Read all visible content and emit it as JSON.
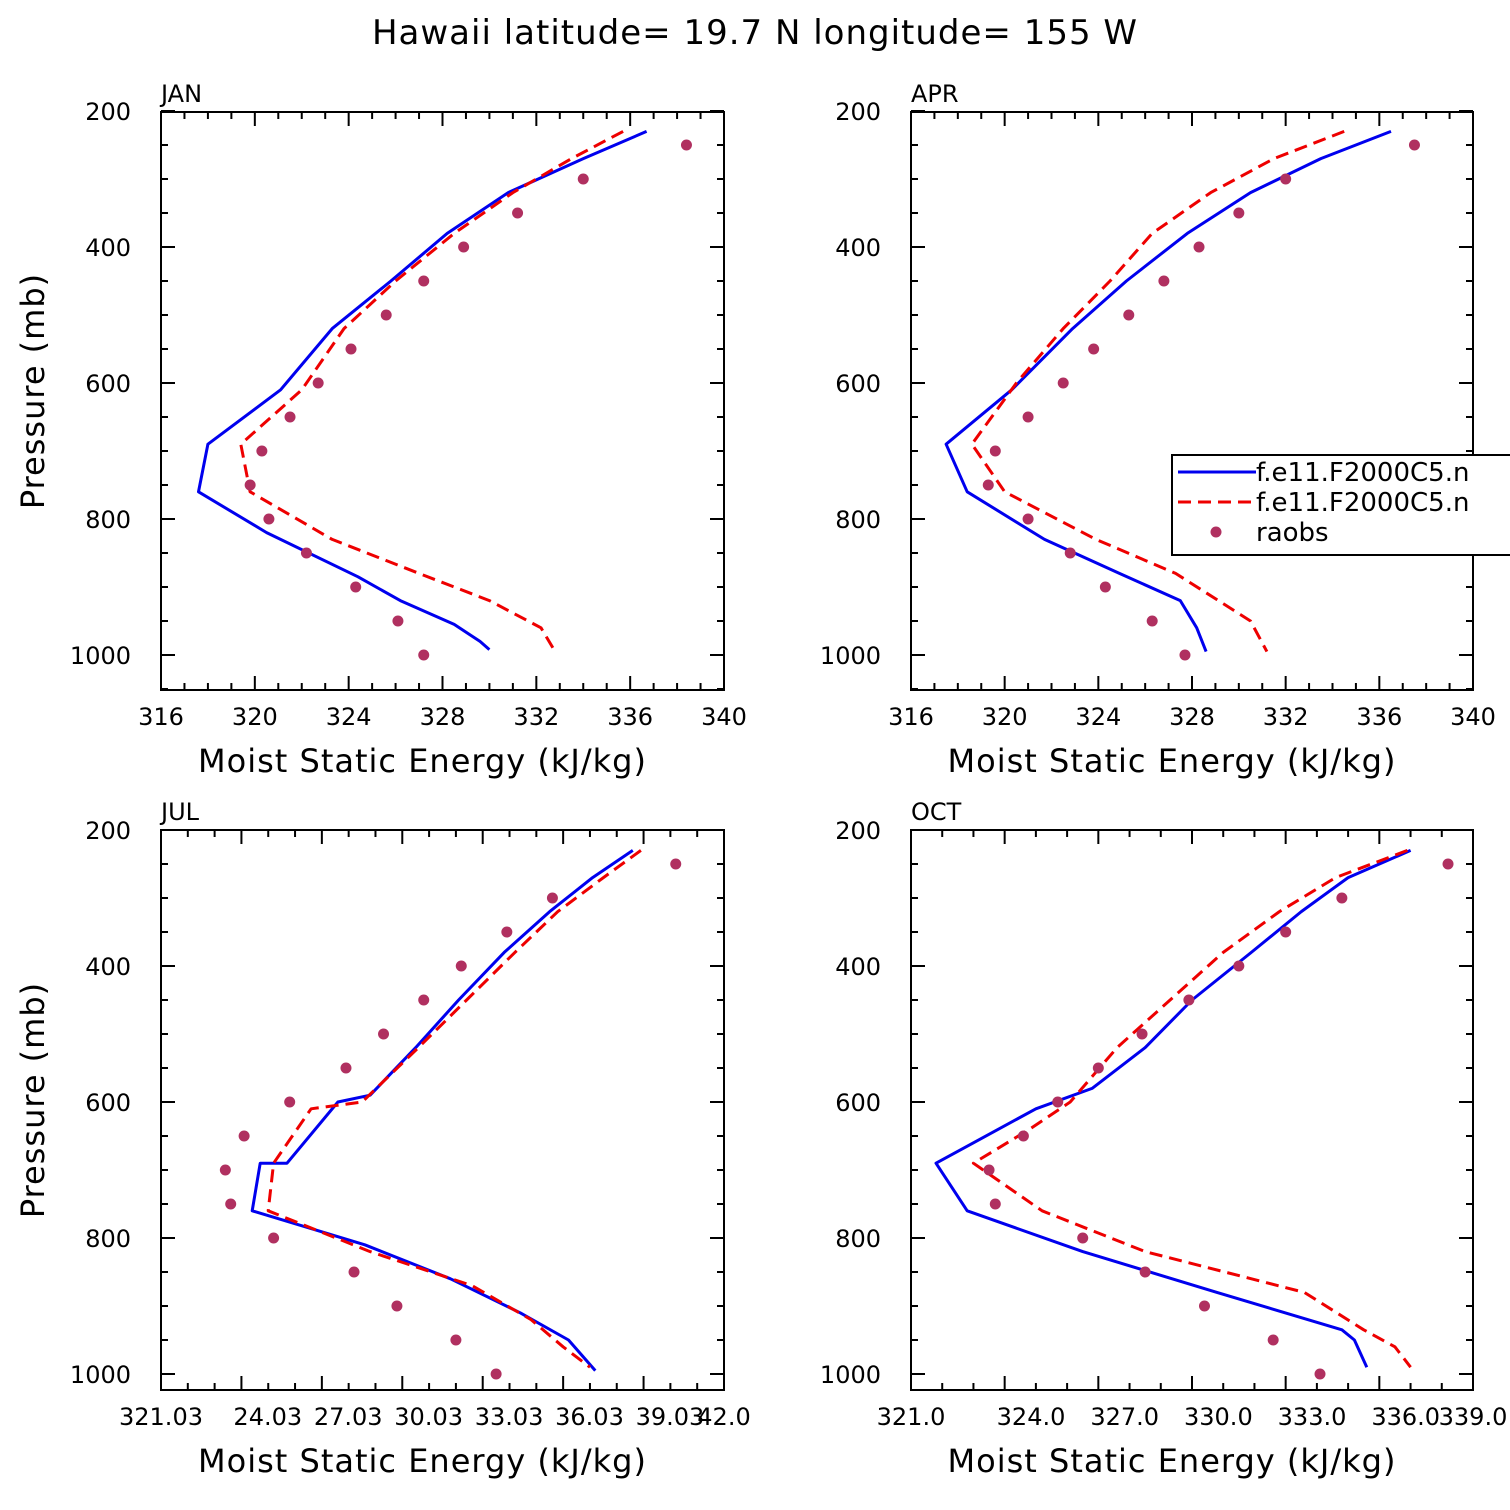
{
  "title": "Hawaii  latitude= 19.7 N longitude= 155 W",
  "colors": {
    "model1": "#0000ee",
    "model2": "#ee0000",
    "raobs": "#b03060",
    "axis": "#000000"
  },
  "legend": {
    "placement": "right, inside APR panel (clipped)",
    "items": [
      {
        "label": "f.e11.F2000C5.n",
        "style": "solid",
        "color": "#0000ee"
      },
      {
        "label": "f.e11.F2000C5.n",
        "style": "dashed",
        "color": "#ee0000"
      },
      {
        "label": "raobs",
        "style": "dot",
        "color": "#b03060"
      }
    ]
  },
  "chart_data": [
    {
      "type": "line",
      "panel": "JAN",
      "xlabel": "Moist Static Energy (kJ/kg)",
      "ylabel": "Pressure (mb)",
      "xlim": [
        316,
        340
      ],
      "ylim": [
        1000,
        200
      ],
      "xticks": [
        316,
        320,
        324,
        328,
        332,
        336,
        340
      ],
      "xtick_labels": [
        "316",
        "320",
        "324",
        "328",
        "332",
        "336",
        "340"
      ],
      "yticks": [
        200,
        400,
        600,
        800,
        1000
      ],
      "ytick_labels": [
        "200",
        "400",
        "600",
        "800",
        "1000"
      ],
      "series": [
        {
          "style": "solid",
          "color": "#0000ee",
          "x": [
            336.7,
            334.0,
            330.8,
            328.2,
            325.8,
            323.3,
            321.1,
            318.0,
            317.6,
            320.5,
            324.4,
            326.2,
            328.5,
            329.6,
            330.0
          ],
          "y": [
            230,
            270,
            320,
            380,
            450,
            520,
            610,
            690,
            760,
            820,
            885,
            920,
            955,
            980,
            992
          ]
        },
        {
          "style": "dashed",
          "color": "#ee0000",
          "x": [
            335.7,
            333.5,
            331.0,
            328.5,
            326.0,
            323.8,
            322.0,
            319.4,
            319.8,
            323.3,
            327.0,
            330.0,
            332.2,
            332.8
          ],
          "y": [
            230,
            270,
            320,
            380,
            450,
            520,
            610,
            690,
            760,
            830,
            880,
            920,
            960,
            995
          ]
        },
        {
          "style": "dots",
          "color": "#b03060",
          "x": [
            338.4,
            334.0,
            331.2,
            328.9,
            327.2,
            325.6,
            324.1,
            322.7,
            321.5,
            320.3,
            319.8,
            320.6,
            322.2,
            324.3,
            326.1,
            327.2
          ],
          "y": [
            250,
            300,
            350,
            400,
            450,
            500,
            550,
            600,
            650,
            700,
            750,
            800,
            850,
            900,
            950,
            1000
          ]
        }
      ]
    },
    {
      "type": "line",
      "panel": "APR",
      "xlabel": "Moist Static Energy (kJ/kg)",
      "ylabel": "",
      "xlim": [
        316,
        340
      ],
      "ylim": [
        1000,
        200
      ],
      "xticks": [
        316,
        320,
        324,
        328,
        332,
        336,
        340
      ],
      "xtick_labels": [
        "316",
        "320",
        "324",
        "328",
        "332",
        "336",
        "340"
      ],
      "yticks": [
        200,
        400,
        600,
        800,
        1000
      ],
      "ytick_labels": [
        "200",
        "400",
        "600",
        "800",
        "1000"
      ],
      "series": [
        {
          "style": "solid",
          "color": "#0000ee",
          "x": [
            336.5,
            333.5,
            330.5,
            327.8,
            325.2,
            322.9,
            320.3,
            317.5,
            318.4,
            321.7,
            324.9,
            327.5,
            328.2,
            328.6
          ],
          "y": [
            230,
            270,
            320,
            380,
            450,
            520,
            610,
            690,
            760,
            830,
            880,
            920,
            960,
            995
          ]
        },
        {
          "style": "dashed",
          "color": "#ee0000",
          "x": [
            334.5,
            331.5,
            328.8,
            326.3,
            324.5,
            322.5,
            320.5,
            318.6,
            320.0,
            323.9,
            327.3,
            330.5,
            331.2
          ],
          "y": [
            230,
            270,
            320,
            380,
            450,
            520,
            600,
            690,
            760,
            830,
            880,
            950,
            995
          ]
        },
        {
          "style": "dots",
          "color": "#b03060",
          "x": [
            337.5,
            332.0,
            330.0,
            328.3,
            326.8,
            325.3,
            323.8,
            322.5,
            321.0,
            319.6,
            319.3,
            321.0,
            322.8,
            324.3,
            326.3,
            327.7
          ],
          "y": [
            250,
            300,
            350,
            400,
            450,
            500,
            550,
            600,
            650,
            700,
            750,
            800,
            850,
            900,
            950,
            1000
          ]
        }
      ]
    },
    {
      "type": "line",
      "panel": "JUL",
      "xlabel": "Moist Static Energy (kJ/kg)",
      "ylabel": "Pressure (mb)",
      "xlim": [
        321.0,
        342.0
      ],
      "ylim": [
        1000,
        200
      ],
      "xticks": [
        321.03,
        324.03,
        327.03,
        330.03,
        333.03,
        336.03,
        339.03,
        342.0
      ],
      "xtick_labels": [
        "321.03",
        "24.03",
        "27.03",
        "30.03",
        "33.03",
        "36.03",
        "39.03",
        "42.0"
      ],
      "series": [
        {
          "style": "solid",
          "color": "#0000ee",
          "x": [
            338.6,
            337.1,
            335.5,
            333.8,
            332.1,
            330.5,
            328.8,
            327.6,
            325.7,
            324.7,
            324.4,
            328.6,
            331.8,
            334.4,
            336.2,
            337.2
          ],
          "y": [
            230,
            270,
            320,
            380,
            450,
            520,
            590,
            600,
            690,
            690,
            760,
            810,
            860,
            910,
            950,
            995
          ]
        },
        {
          "style": "dashed",
          "color": "#ee0000",
          "x": [
            338.9,
            337.5,
            335.8,
            334.2,
            332.4,
            330.6,
            328.5,
            326.6,
            325.2,
            325.0,
            328.8,
            332.6,
            334.8,
            336.0,
            337.0
          ],
          "y": [
            230,
            270,
            320,
            380,
            450,
            520,
            600,
            610,
            690,
            760,
            820,
            870,
            920,
            960,
            990
          ]
        },
        {
          "style": "dots",
          "color": "#b03060",
          "x": [
            340.2,
            335.6,
            333.9,
            332.2,
            330.8,
            329.3,
            327.9,
            325.8,
            324.1,
            323.4,
            323.6,
            325.2,
            328.2,
            329.8,
            332.0,
            333.5
          ],
          "y": [
            250,
            300,
            350,
            400,
            450,
            500,
            550,
            600,
            650,
            700,
            750,
            800,
            850,
            900,
            950,
            1000
          ]
        }
      ]
    },
    {
      "type": "line",
      "panel": "OCT",
      "xlabel": "Moist Static Energy (kJ/kg)",
      "ylabel": "",
      "xlim": [
        321.0,
        339.0
      ],
      "ylim": [
        1000,
        200
      ],
      "xticks": [
        321.0,
        324.0,
        327.0,
        330.0,
        333.0,
        336.0,
        339.0
      ],
      "xtick_labels": [
        "321.0",
        "324.0",
        "327.0",
        "330.0",
        "333.0",
        "336.0",
        "339.0"
      ],
      "yticks": [
        200,
        400,
        600,
        800,
        1000
      ],
      "ytick_labels": [
        "200",
        "400",
        "600",
        "800",
        "1000"
      ],
      "series": [
        {
          "style": "solid",
          "color": "#0000ee",
          "x": [
            337.0,
            335.0,
            333.5,
            331.9,
            330.0,
            328.5,
            326.8,
            325.0,
            321.8,
            322.8,
            326.5,
            330.8,
            334.8,
            335.2,
            335.6
          ],
          "y": [
            230,
            270,
            320,
            380,
            450,
            520,
            580,
            610,
            690,
            760,
            820,
            880,
            935,
            950,
            990
          ]
        },
        {
          "style": "dashed",
          "color": "#ee0000",
          "x": [
            336.9,
            334.6,
            332.8,
            331.0,
            329.3,
            327.6,
            326.1,
            324.8,
            323.0,
            325.2,
            328.5,
            333.6,
            335.5,
            336.5,
            337.0
          ],
          "y": [
            230,
            270,
            320,
            380,
            450,
            520,
            600,
            640,
            690,
            760,
            820,
            880,
            935,
            960,
            990
          ]
        },
        {
          "style": "dots",
          "color": "#b03060",
          "x": [
            338.2,
            334.8,
            333.0,
            331.5,
            329.9,
            328.4,
            327.0,
            325.7,
            324.6,
            323.5,
            323.7,
            326.5,
            328.5,
            330.4,
            332.6,
            334.1
          ],
          "y": [
            250,
            300,
            350,
            400,
            450,
            500,
            550,
            600,
            650,
            700,
            750,
            800,
            850,
            900,
            950,
            1000
          ]
        }
      ]
    }
  ]
}
